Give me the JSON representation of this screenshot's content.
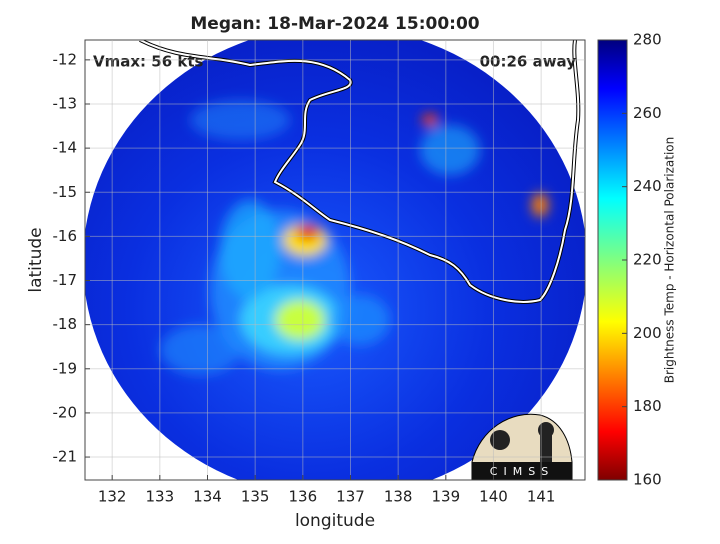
{
  "chart_data": {
    "type": "map",
    "title": "Megan: 18-Mar-2024 15:00:00",
    "xlabel": "longitude",
    "ylabel": "latitude",
    "annotations": [
      "Vmax: 56 kts",
      "00:26 away"
    ],
    "xlim": [
      131.43,
      141.92
    ],
    "ylim": [
      -21.52,
      -11.55
    ],
    "xticks": [
      132,
      133,
      134,
      135,
      136,
      137,
      138,
      139,
      140,
      141
    ],
    "yticks": [
      -12,
      -13,
      -14,
      -15,
      -16,
      -17,
      -18,
      -19,
      -20,
      -21
    ],
    "grid": true,
    "colorbar": {
      "label": "Brightness Temp - Horizontal Polarization",
      "lim": [
        160,
        280
      ],
      "ticks": [
        160,
        180,
        200,
        220,
        240,
        260,
        280
      ]
    },
    "logo": "CIMSS"
  }
}
